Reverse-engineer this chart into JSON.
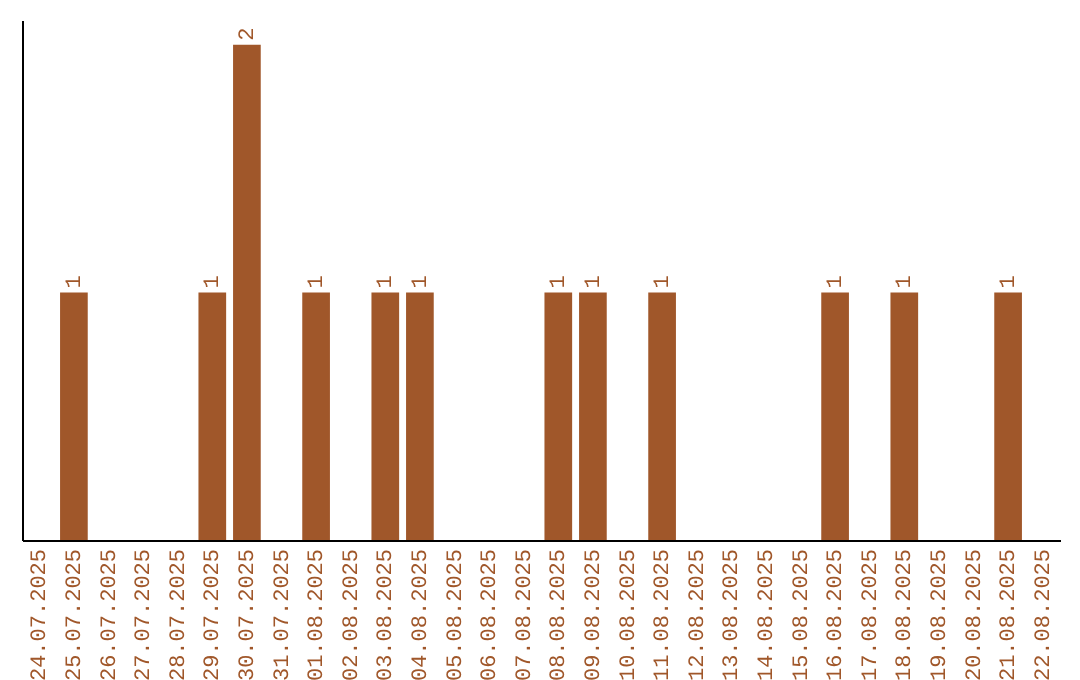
{
  "chart_data": {
    "type": "bar",
    "categories": [
      "24.07.2025",
      "25.07.2025",
      "26.07.2025",
      "27.07.2025",
      "28.07.2025",
      "29.07.2025",
      "30.07.2025",
      "31.07.2025",
      "01.08.2025",
      "02.08.2025",
      "03.08.2025",
      "04.08.2025",
      "05.08.2025",
      "06.08.2025",
      "07.08.2025",
      "08.08.2025",
      "09.08.2025",
      "10.08.2025",
      "11.08.2025",
      "12.08.2025",
      "13.08.2025",
      "14.08.2025",
      "15.08.2025",
      "16.08.2025",
      "17.08.2025",
      "18.08.2025",
      "19.08.2025",
      "20.08.2025",
      "21.08.2025",
      "22.08.2025"
    ],
    "values": [
      0,
      1,
      0,
      0,
      0,
      1,
      2,
      0,
      1,
      0,
      1,
      1,
      0,
      0,
      0,
      1,
      1,
      0,
      1,
      0,
      0,
      0,
      0,
      1,
      0,
      1,
      0,
      0,
      1,
      0
    ],
    "value_labels": [
      null,
      "1",
      null,
      null,
      null,
      "1",
      "2",
      null,
      "1",
      null,
      "1",
      "1",
      null,
      null,
      null,
      "1",
      "1",
      null,
      "1",
      null,
      null,
      null,
      null,
      "1",
      null,
      "1",
      null,
      null,
      "1",
      null
    ],
    "color": "#a0572a",
    "ylim": [
      0,
      2.1
    ],
    "grid": false
  }
}
